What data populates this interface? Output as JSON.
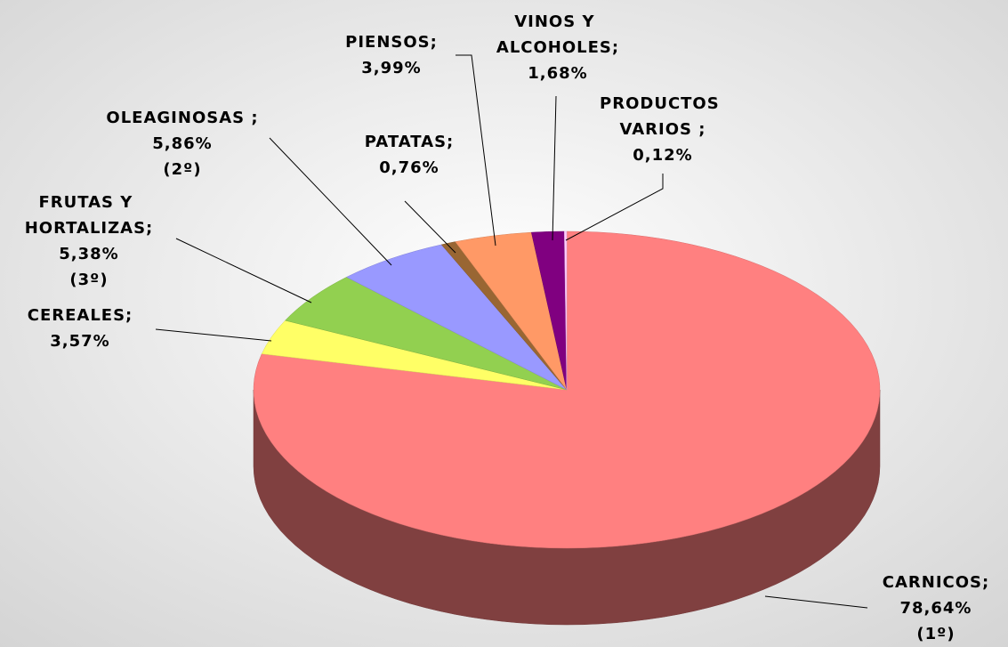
{
  "chart_data": {
    "type": "pie3d",
    "categories": [
      "CARNICOS;",
      "CEREALES;",
      "FRUTAS Y HORTALIZAS;",
      "OLEAGINOSAS ;",
      "PATATAS;",
      "PIENSOS;",
      "VINOS Y ALCOHOLES;",
      "PRODUCTOS VARIOS ;"
    ],
    "values": [
      78.64,
      3.57,
      5.38,
      5.86,
      0.76,
      3.99,
      1.68,
      0.12
    ],
    "value_labels": [
      "78,64%",
      "3,57%",
      "5,38%",
      "5,86%",
      "0,76%",
      "3,99%",
      "1,68%",
      "0,12%"
    ],
    "ranks": [
      "(1º)",
      null,
      "(3º)",
      "(2º)",
      null,
      null,
      null,
      null
    ],
    "colors": [
      "#ff8080",
      "#ffff66",
      "#92d050",
      "#9999ff",
      "#996633",
      "#ff9966",
      "#800080",
      "#ffccff"
    ]
  }
}
